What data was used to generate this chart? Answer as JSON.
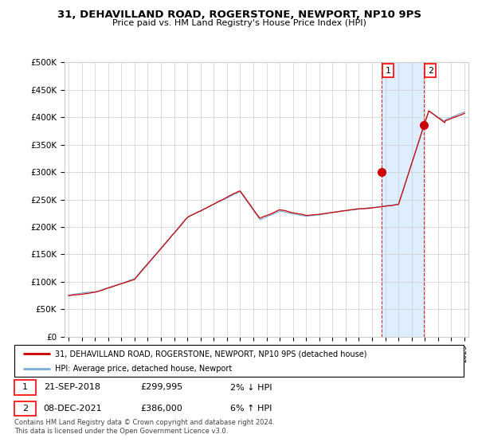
{
  "title": "31, DEHAVILLAND ROAD, ROGERSTONE, NEWPORT, NP10 9PS",
  "subtitle": "Price paid vs. HM Land Registry's House Price Index (HPI)",
  "ylim": [
    0,
    500000
  ],
  "yticks": [
    0,
    50000,
    100000,
    150000,
    200000,
    250000,
    300000,
    350000,
    400000,
    450000,
    500000
  ],
  "ytick_labels": [
    "£0",
    "£50K",
    "£100K",
    "£150K",
    "£200K",
    "£250K",
    "£300K",
    "£350K",
    "£400K",
    "£450K",
    "£500K"
  ],
  "hpi_color": "#7aadda",
  "price_color": "#cc0000",
  "shaded_color": "#ddeeff",
  "grid_color": "#cccccc",
  "legend_label1": "31, DEHAVILLAND ROAD, ROGERSTONE, NEWPORT, NP10 9PS (detached house)",
  "legend_label2": "HPI: Average price, detached house, Newport",
  "note1_date": "21-SEP-2018",
  "note1_price": "£299,995",
  "note1_hpi": "2% ↓ HPI",
  "note2_date": "08-DEC-2021",
  "note2_price": "£386,000",
  "note2_hpi": "6% ↑ HPI",
  "footer": "Contains HM Land Registry data © Crown copyright and database right 2024.\nThis data is licensed under the Open Government Licence v3.0.",
  "sale1_year": 2018.72,
  "sale1_price": 299995,
  "sale2_year": 2021.92,
  "sale2_price": 386000,
  "start_year": 1995,
  "end_year": 2025
}
